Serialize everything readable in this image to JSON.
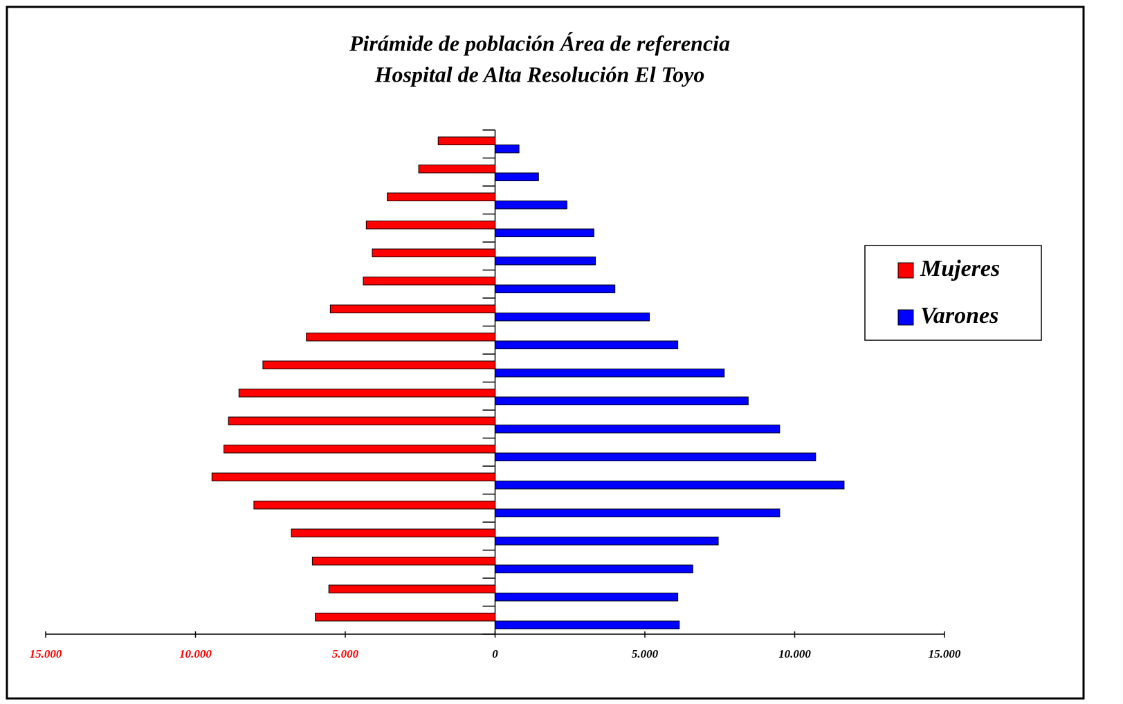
{
  "chart_data": {
    "type": "pyramid",
    "title": [
      "Pirámide de población Área de referencia",
      "Hospital de Alta Resolución El Toyo"
    ],
    "categories": [
      null,
      null,
      null,
      null,
      null,
      null,
      null,
      null,
      null,
      null,
      null,
      null,
      null,
      null,
      null,
      null,
      null,
      null
    ],
    "series": [
      {
        "name": "Mujeres",
        "color": "#ff0000",
        "values": [
          -1900,
          -2550,
          -3600,
          -4300,
          -4100,
          -4400,
          -5500,
          -6300,
          -7750,
          -8550,
          -8900,
          -9050,
          -9450,
          -8050,
          -6800,
          -6100,
          -5550,
          -6000
        ]
      },
      {
        "name": "Varones",
        "color": "#0000ff",
        "values": [
          800,
          1450,
          2400,
          3300,
          3350,
          4000,
          5150,
          6100,
          7650,
          8450,
          9500,
          10700,
          11650,
          9500,
          7450,
          6600,
          6100,
          6150
        ]
      }
    ],
    "xlim": [
      -15000,
      15000
    ],
    "xticks": [
      {
        "value": -15000,
        "label": "15.000"
      },
      {
        "value": -10000,
        "label": "10.000"
      },
      {
        "value": -5000,
        "label": "5.000"
      },
      0,
      {
        "value": 5000,
        "label": "5.000"
      },
      {
        "value": 10000,
        "label": "10.000"
      },
      {
        "value": 15000,
        "label": "15.000"
      }
    ],
    "negative_tick_color": "#ff0000",
    "legend": "right"
  }
}
